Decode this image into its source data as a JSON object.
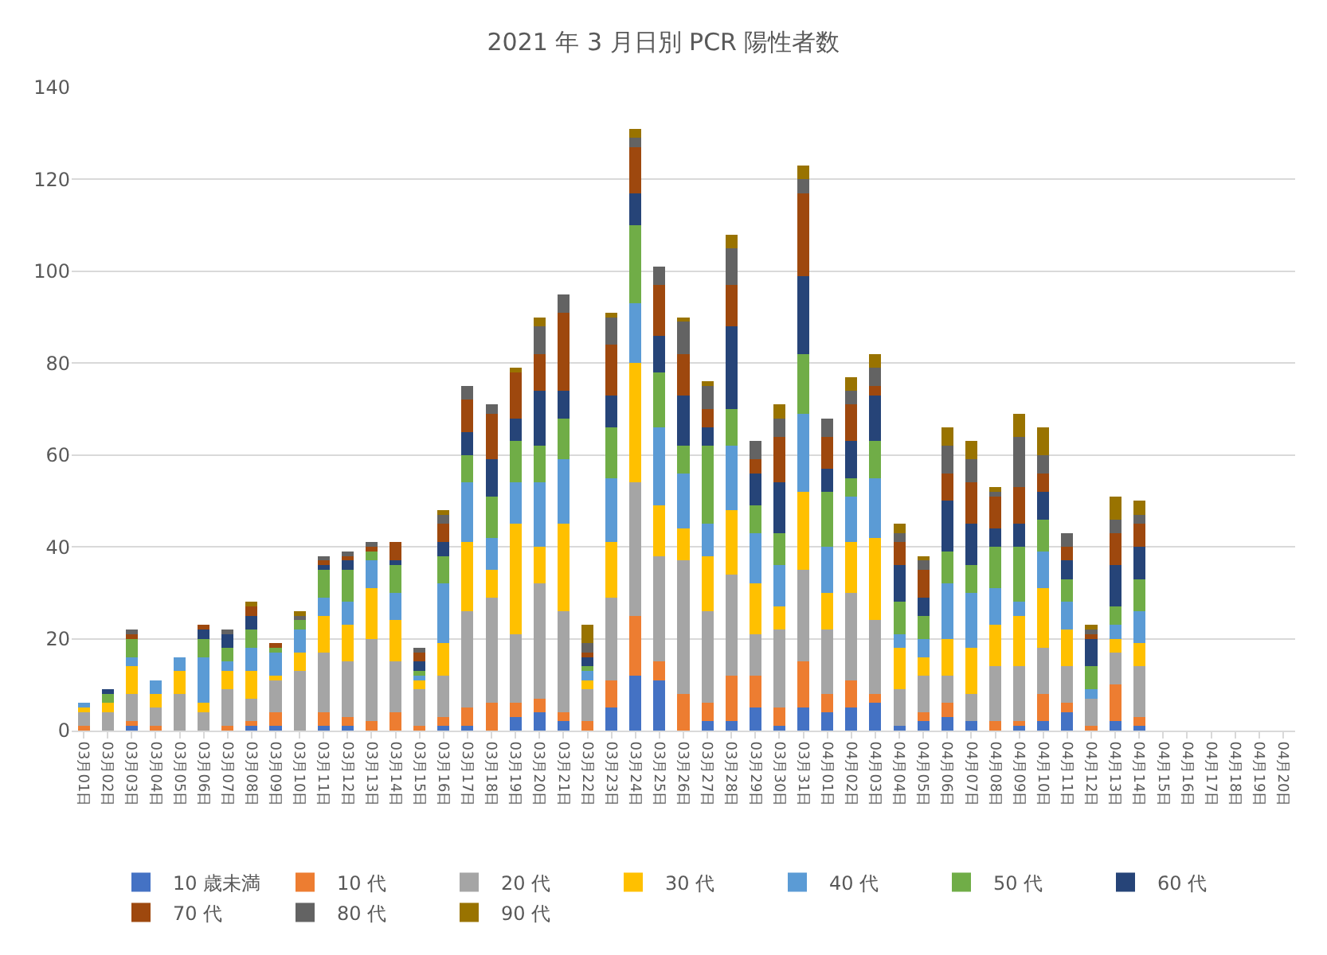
{
  "chart_data": {
    "type": "bar",
    "stacked": true,
    "title": "2021 年 3 月日別 PCR 陽性者数",
    "categories": [
      "03月01日",
      "03月02日",
      "03月03日",
      "03月04日",
      "03月05日",
      "03月06日",
      "03月07日",
      "03月08日",
      "03月09日",
      "03月10日",
      "03月11日",
      "03月12日",
      "03月13日",
      "03月14日",
      "03月15日",
      "03月16日",
      "03月17日",
      "03月18日",
      "03月19日",
      "03月20日",
      "03月21日",
      "03月22日",
      "03月23日",
      "03月24日",
      "03月25日",
      "03月26日",
      "03月27日",
      "03月28日",
      "03月29日",
      "03月30日",
      "03月31日",
      "04月01日",
      "04月02日",
      "04月03日",
      "04月04日",
      "04月05日",
      "04月06日",
      "04月07日",
      "04月08日",
      "04月09日",
      "04月10日",
      "04月11日",
      "04月12日",
      "04月13日",
      "04月14日",
      "04月15日",
      "04月16日",
      "04月17日",
      "04月18日",
      "04月19日",
      "04月20日"
    ],
    "series": [
      {
        "name": "10 歳未満",
        "color": "#4472c4",
        "values": [
          0,
          0,
          1,
          0,
          0,
          0,
          0,
          1,
          1,
          0,
          1,
          1,
          0,
          0,
          0,
          1,
          1,
          0,
          3,
          4,
          2,
          0,
          5,
          12,
          11,
          0,
          2,
          2,
          5,
          1,
          5,
          4,
          5,
          6,
          1,
          2,
          3,
          2,
          0,
          1,
          2,
          4,
          0,
          2,
          1,
          null,
          null,
          null,
          null,
          null,
          null
        ]
      },
      {
        "name": "10 代",
        "color": "#ed7d31",
        "values": [
          1,
          0,
          1,
          1,
          0,
          0,
          1,
          1,
          3,
          0,
          3,
          2,
          2,
          4,
          1,
          2,
          4,
          6,
          3,
          3,
          2,
          2,
          6,
          13,
          4,
          8,
          4,
          10,
          7,
          4,
          10,
          4,
          6,
          2,
          0,
          2,
          3,
          0,
          2,
          1,
          6,
          2,
          1,
          8,
          2,
          null,
          null,
          null,
          null,
          null,
          null
        ]
      },
      {
        "name": "20 代",
        "color": "#a5a5a5",
        "values": [
          3,
          4,
          6,
          4,
          8,
          4,
          8,
          5,
          7,
          13,
          13,
          12,
          18,
          11,
          8,
          9,
          21,
          23,
          15,
          25,
          22,
          7,
          18,
          29,
          23,
          29,
          20,
          22,
          9,
          17,
          20,
          14,
          19,
          16,
          8,
          8,
          6,
          6,
          12,
          12,
          10,
          8,
          6,
          7,
          11,
          null,
          null,
          null,
          null,
          null,
          null
        ]
      },
      {
        "name": "30 代",
        "color": "#ffc000",
        "values": [
          1,
          2,
          6,
          3,
          5,
          2,
          4,
          6,
          1,
          4,
          8,
          8,
          11,
          9,
          2,
          7,
          15,
          6,
          24,
          8,
          19,
          2,
          12,
          26,
          11,
          7,
          12,
          14,
          11,
          5,
          17,
          8,
          11,
          18,
          9,
          4,
          8,
          10,
          9,
          11,
          13,
          8,
          0,
          3,
          5,
          null,
          null,
          null,
          null,
          null,
          null
        ]
      },
      {
        "name": "40 代",
        "color": "#5b9bd5",
        "values": [
          1,
          0,
          2,
          3,
          3,
          10,
          2,
          5,
          5,
          5,
          4,
          5,
          6,
          6,
          1,
          13,
          13,
          7,
          9,
          14,
          14,
          2,
          14,
          13,
          17,
          12,
          7,
          14,
          11,
          9,
          17,
          10,
          10,
          13,
          3,
          4,
          12,
          12,
          8,
          3,
          8,
          6,
          2,
          3,
          7,
          null,
          null,
          null,
          null,
          null,
          null
        ]
      },
      {
        "name": "50 代",
        "color": "#70ad47",
        "values": [
          0,
          2,
          4,
          0,
          0,
          4,
          3,
          4,
          1,
          2,
          6,
          7,
          2,
          6,
          1,
          6,
          6,
          9,
          9,
          8,
          9,
          1,
          11,
          17,
          12,
          6,
          17,
          8,
          6,
          7,
          13,
          12,
          4,
          8,
          7,
          5,
          7,
          6,
          9,
          12,
          7,
          5,
          5,
          4,
          7,
          null,
          null,
          null,
          null,
          null,
          null
        ]
      },
      {
        "name": "60 代",
        "color": "#264478",
        "values": [
          0,
          1,
          0,
          0,
          0,
          2,
          3,
          3,
          0,
          0,
          1,
          2,
          0,
          1,
          2,
          3,
          5,
          8,
          5,
          12,
          6,
          2,
          7,
          7,
          8,
          11,
          4,
          18,
          7,
          11,
          17,
          5,
          8,
          10,
          8,
          4,
          11,
          9,
          4,
          5,
          6,
          4,
          6,
          9,
          7,
          null,
          null,
          null,
          null,
          null,
          null
        ]
      },
      {
        "name": "70 代",
        "color": "#9e480e",
        "values": [
          0,
          0,
          1,
          0,
          0,
          1,
          0,
          2,
          1,
          0,
          1,
          1,
          1,
          4,
          2,
          4,
          7,
          10,
          10,
          8,
          17,
          1,
          11,
          10,
          11,
          9,
          4,
          9,
          3,
          10,
          18,
          7,
          8,
          2,
          5,
          6,
          6,
          9,
          7,
          8,
          4,
          3,
          1,
          7,
          5,
          null,
          null,
          null,
          null,
          null,
          null
        ]
      },
      {
        "name": "80 代",
        "color": "#636363",
        "values": [
          0,
          0,
          1,
          0,
          0,
          0,
          1,
          0,
          0,
          1,
          1,
          1,
          1,
          0,
          1,
          2,
          3,
          2,
          0,
          6,
          4,
          2,
          6,
          2,
          4,
          7,
          5,
          8,
          4,
          4,
          3,
          4,
          3,
          4,
          2,
          2,
          6,
          5,
          1,
          11,
          4,
          3,
          1,
          3,
          2,
          null,
          null,
          null,
          null,
          null,
          null
        ]
      },
      {
        "name": "90 代",
        "color": "#997300",
        "values": [
          0,
          0,
          0,
          0,
          0,
          0,
          0,
          1,
          0,
          1,
          0,
          0,
          0,
          0,
          0,
          1,
          0,
          0,
          1,
          2,
          0,
          4,
          1,
          2,
          0,
          1,
          1,
          3,
          0,
          3,
          3,
          0,
          3,
          3,
          2,
          1,
          4,
          4,
          1,
          5,
          6,
          0,
          1,
          5,
          3,
          null,
          null,
          null,
          null,
          null,
          null
        ]
      }
    ],
    "ylim": [
      0,
      140
    ],
    "yticks": [
      0,
      20,
      40,
      60,
      80,
      100,
      120,
      140
    ],
    "grid": "y",
    "legend": "bottom"
  }
}
